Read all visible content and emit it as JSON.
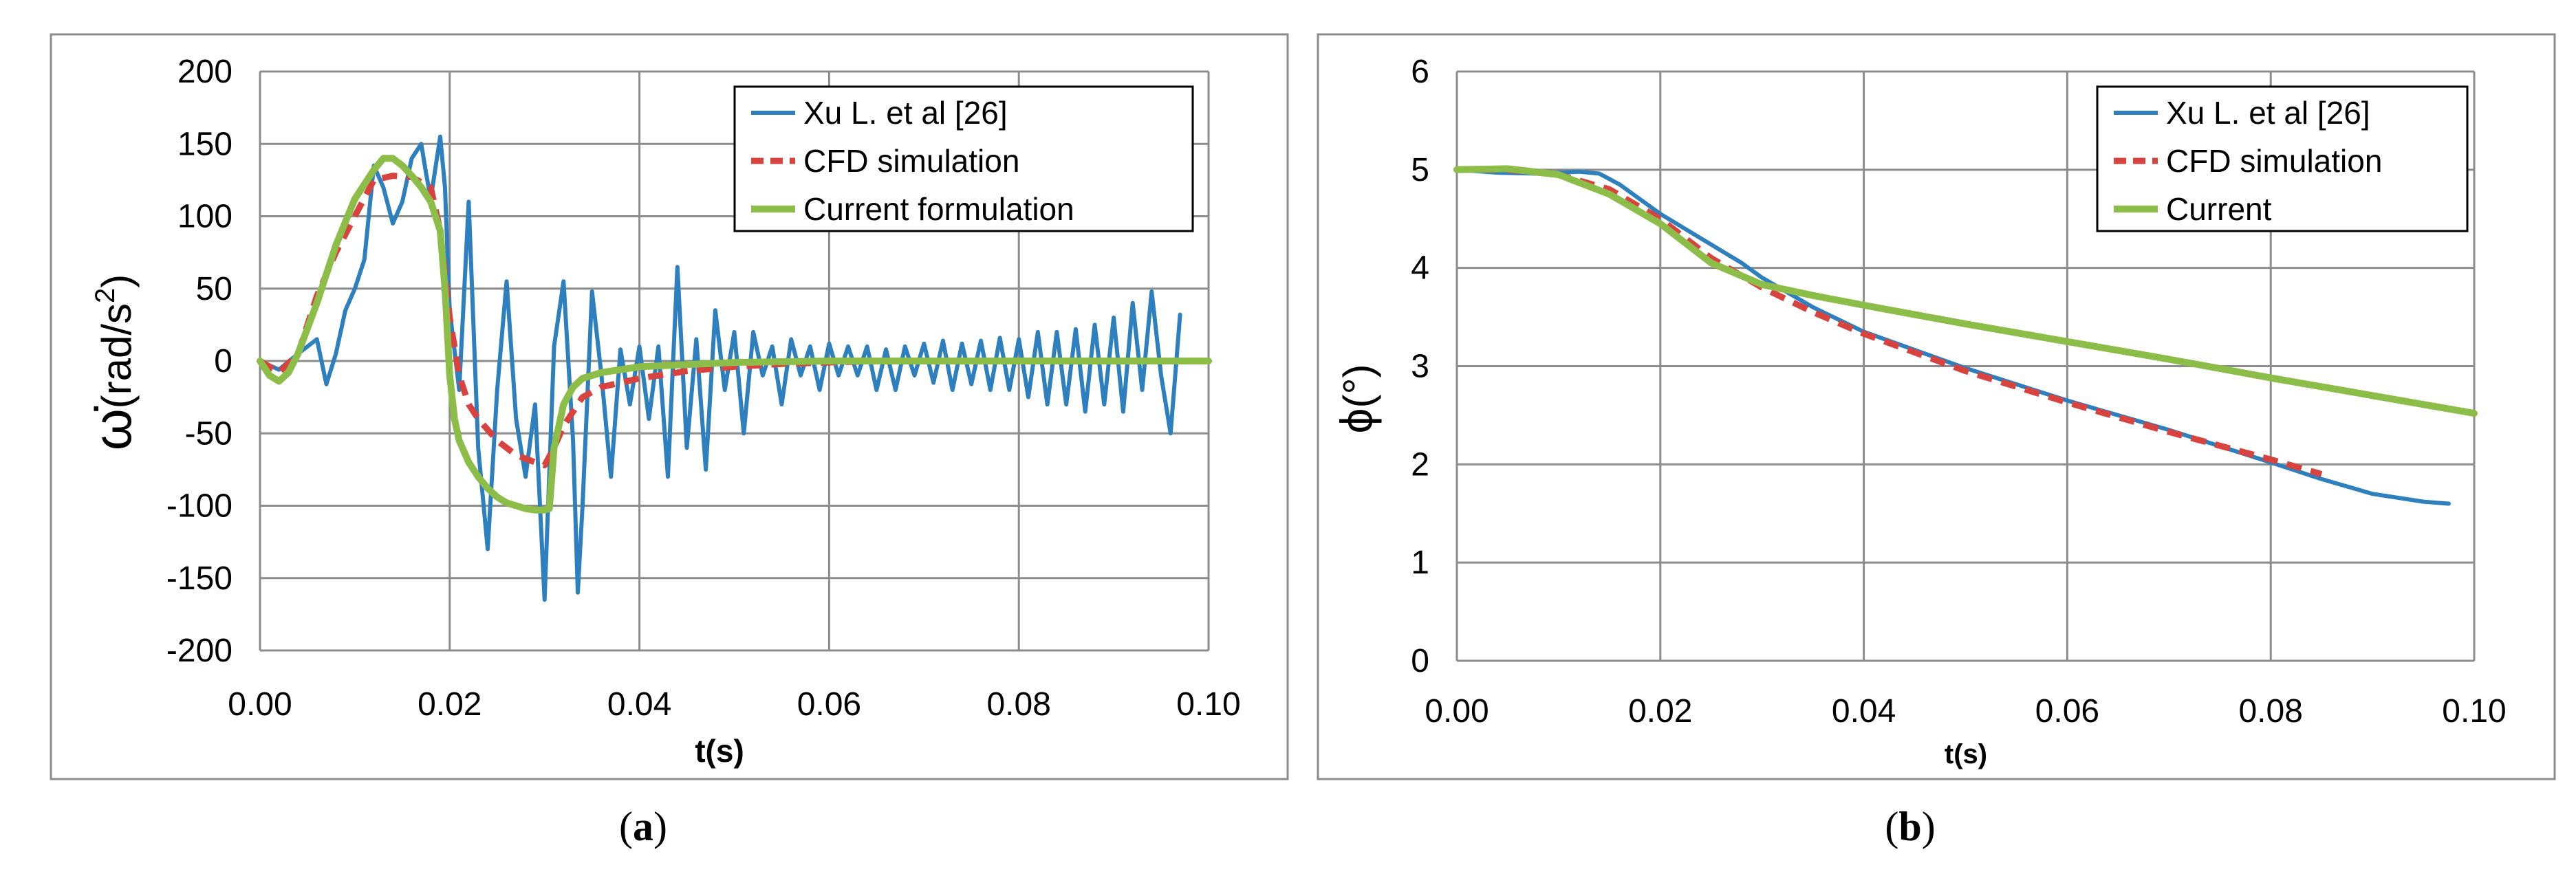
{
  "chart_data": [
    {
      "type": "line",
      "panel": "a",
      "caption_label": "a",
      "xlabel": "t(s)",
      "ylabel_symbol": "ω̇",
      "ylabel_unit": "(rad/s",
      "ylabel_exp": "2",
      "ylabel_close": ")",
      "xlim": [
        0,
        0.1
      ],
      "ylim": [
        -200,
        200
      ],
      "xticks": [
        "0.00",
        "0.02",
        "0.04",
        "0.06",
        "0.08",
        "0.10"
      ],
      "yticks": [
        "200",
        "150",
        "100",
        "50",
        "0",
        "-50",
        "-100",
        "-150",
        "-200"
      ],
      "grid": true,
      "legend_position": "top-right",
      "series": [
        {
          "name": "Xu L.  et al [26]",
          "color": "#2e7fbd",
          "style": "solid",
          "x": [
            0,
            0.002,
            0.004,
            0.006,
            0.007,
            0.008,
            0.009,
            0.01,
            0.011,
            0.012,
            0.013,
            0.014,
            0.015,
            0.016,
            0.017,
            0.0175,
            0.018,
            0.019,
            0.0195,
            0.02,
            0.021,
            0.022,
            0.023,
            0.024,
            0.025,
            0.026,
            0.027,
            0.028,
            0.029,
            0.03,
            0.031,
            0.032,
            0.033,
            0.0335,
            0.034,
            0.035,
            0.036,
            0.037,
            0.038,
            0.039,
            0.04,
            0.041,
            0.042,
            0.043,
            0.044,
            0.045,
            0.046,
            0.047,
            0.048,
            0.049,
            0.05,
            0.051,
            0.052,
            0.053,
            0.054,
            0.055,
            0.056,
            0.057,
            0.058,
            0.059,
            0.06,
            0.061,
            0.062,
            0.063,
            0.064,
            0.065,
            0.066,
            0.067,
            0.068,
            0.069,
            0.07,
            0.071,
            0.072,
            0.073,
            0.074,
            0.075,
            0.076,
            0.077,
            0.078,
            0.079,
            0.08,
            0.081,
            0.082,
            0.083,
            0.084,
            0.085,
            0.086,
            0.087,
            0.088,
            0.089,
            0.09,
            0.091,
            0.092,
            0.093,
            0.094,
            0.095,
            0.096,
            0.097
          ],
          "y": [
            0,
            -6,
            5,
            15,
            -16,
            5,
            35,
            50,
            70,
            135,
            120,
            95,
            110,
            140,
            150,
            130,
            112,
            155,
            120,
            35,
            -20,
            110,
            -60,
            -130,
            -20,
            55,
            -40,
            -80,
            -30,
            -165,
            10,
            55,
            -55,
            -160,
            -100,
            48,
            -10,
            -80,
            8,
            -30,
            10,
            -40,
            10,
            -80,
            65,
            -60,
            15,
            -75,
            35,
            -20,
            20,
            -50,
            20,
            -10,
            10,
            -30,
            15,
            -10,
            10,
            -20,
            12,
            -10,
            10,
            -10,
            10,
            -20,
            8,
            -20,
            10,
            -10,
            12,
            -15,
            14,
            -20,
            12,
            -16,
            14,
            -20,
            16,
            -20,
            15,
            -25,
            20,
            -30,
            20,
            -30,
            22,
            -35,
            25,
            -30,
            30,
            -35,
            40,
            -20,
            48,
            -10,
            -50,
            32
          ]
        },
        {
          "name": "CFD simulation",
          "color": "#d9433f",
          "style": "dashed",
          "x": [
            0,
            0.002,
            0.004,
            0.006,
            0.008,
            0.01,
            0.012,
            0.014,
            0.016,
            0.018,
            0.019,
            0.02,
            0.021,
            0.022,
            0.023,
            0.025,
            0.027,
            0.029,
            0.03,
            0.031,
            0.032,
            0.034,
            0.036,
            0.04,
            0.045,
            0.05,
            0.055,
            0.06,
            0.065
          ],
          "y": [
            0,
            -8,
            5,
            45,
            75,
            100,
            125,
            128,
            127,
            120,
            90,
            30,
            -10,
            -30,
            -40,
            -55,
            -65,
            -70,
            -72,
            -60,
            -45,
            -25,
            -18,
            -12,
            -7,
            -4,
            -2,
            -1,
            0
          ]
        },
        {
          "name": "Current formulation",
          "color": "#8cbd49",
          "style": "solid",
          "x": [
            0,
            0.001,
            0.002,
            0.003,
            0.004,
            0.006,
            0.008,
            0.01,
            0.012,
            0.013,
            0.014,
            0.015,
            0.016,
            0.017,
            0.018,
            0.019,
            0.0195,
            0.02,
            0.0205,
            0.021,
            0.022,
            0.023,
            0.024,
            0.025,
            0.026,
            0.027,
            0.028,
            0.029,
            0.03,
            0.0305,
            0.031,
            0.032,
            0.033,
            0.034,
            0.036,
            0.04,
            0.05,
            0.06,
            0.07,
            0.08,
            0.09,
            0.1
          ],
          "y": [
            0,
            -10,
            -14,
            -8,
            5,
            40,
            80,
            112,
            132,
            140,
            140,
            135,
            128,
            120,
            110,
            90,
            50,
            -10,
            -40,
            -55,
            -70,
            -80,
            -88,
            -94,
            -98,
            -100,
            -102,
            -103,
            -103,
            -102,
            -60,
            -30,
            -18,
            -12,
            -8,
            -4,
            -1,
            0,
            0,
            0,
            0,
            0
          ]
        }
      ]
    },
    {
      "type": "line",
      "panel": "b",
      "caption_label": "b",
      "xlabel": "t(s)",
      "ylabel_symbol": "ϕ",
      "ylabel_unit": "(°)",
      "xlim": [
        0,
        0.1
      ],
      "ylim": [
        0,
        6
      ],
      "xticks": [
        "0.00",
        "0.02",
        "0.04",
        "0.06",
        "0.08",
        "0.10"
      ],
      "yticks": [
        "6",
        "5",
        "4",
        "3",
        "2",
        "1",
        "0"
      ],
      "grid": true,
      "legend_position": "top-right",
      "series": [
        {
          "name": "Xu L.  et al [26]",
          "color": "#2e7fbd",
          "style": "solid",
          "x": [
            0,
            0.004,
            0.008,
            0.012,
            0.014,
            0.016,
            0.018,
            0.02,
            0.024,
            0.028,
            0.03,
            0.035,
            0.04,
            0.05,
            0.06,
            0.07,
            0.08,
            0.085,
            0.09,
            0.095,
            0.0975
          ],
          "y": [
            5,
            4.97,
            4.96,
            4.98,
            4.96,
            4.85,
            4.7,
            4.55,
            4.3,
            4.05,
            3.9,
            3.6,
            3.35,
            2.98,
            2.65,
            2.35,
            2.02,
            1.85,
            1.7,
            1.62,
            1.6
          ]
        },
        {
          "name": "CFD simulation",
          "color": "#d9433f",
          "style": "dashed",
          "x": [
            0,
            0.005,
            0.01,
            0.015,
            0.02,
            0.025,
            0.03,
            0.035,
            0.04,
            0.05,
            0.06,
            0.07,
            0.08,
            0.085
          ],
          "y": [
            5,
            5,
            4.95,
            4.8,
            4.5,
            4.1,
            3.8,
            3.55,
            3.33,
            2.95,
            2.63,
            2.33,
            2.05,
            1.9
          ]
        },
        {
          "name": "Current",
          "color": "#8cbd49",
          "style": "solid",
          "x": [
            0,
            0.005,
            0.01,
            0.015,
            0.02,
            0.025,
            0.03,
            0.035,
            0.04,
            0.05,
            0.06,
            0.07,
            0.08,
            0.09,
            0.1
          ],
          "y": [
            5,
            5.01,
            4.95,
            4.75,
            4.45,
            4.05,
            3.83,
            3.72,
            3.62,
            3.43,
            3.25,
            3.07,
            2.88,
            2.7,
            2.52
          ]
        }
      ]
    }
  ]
}
